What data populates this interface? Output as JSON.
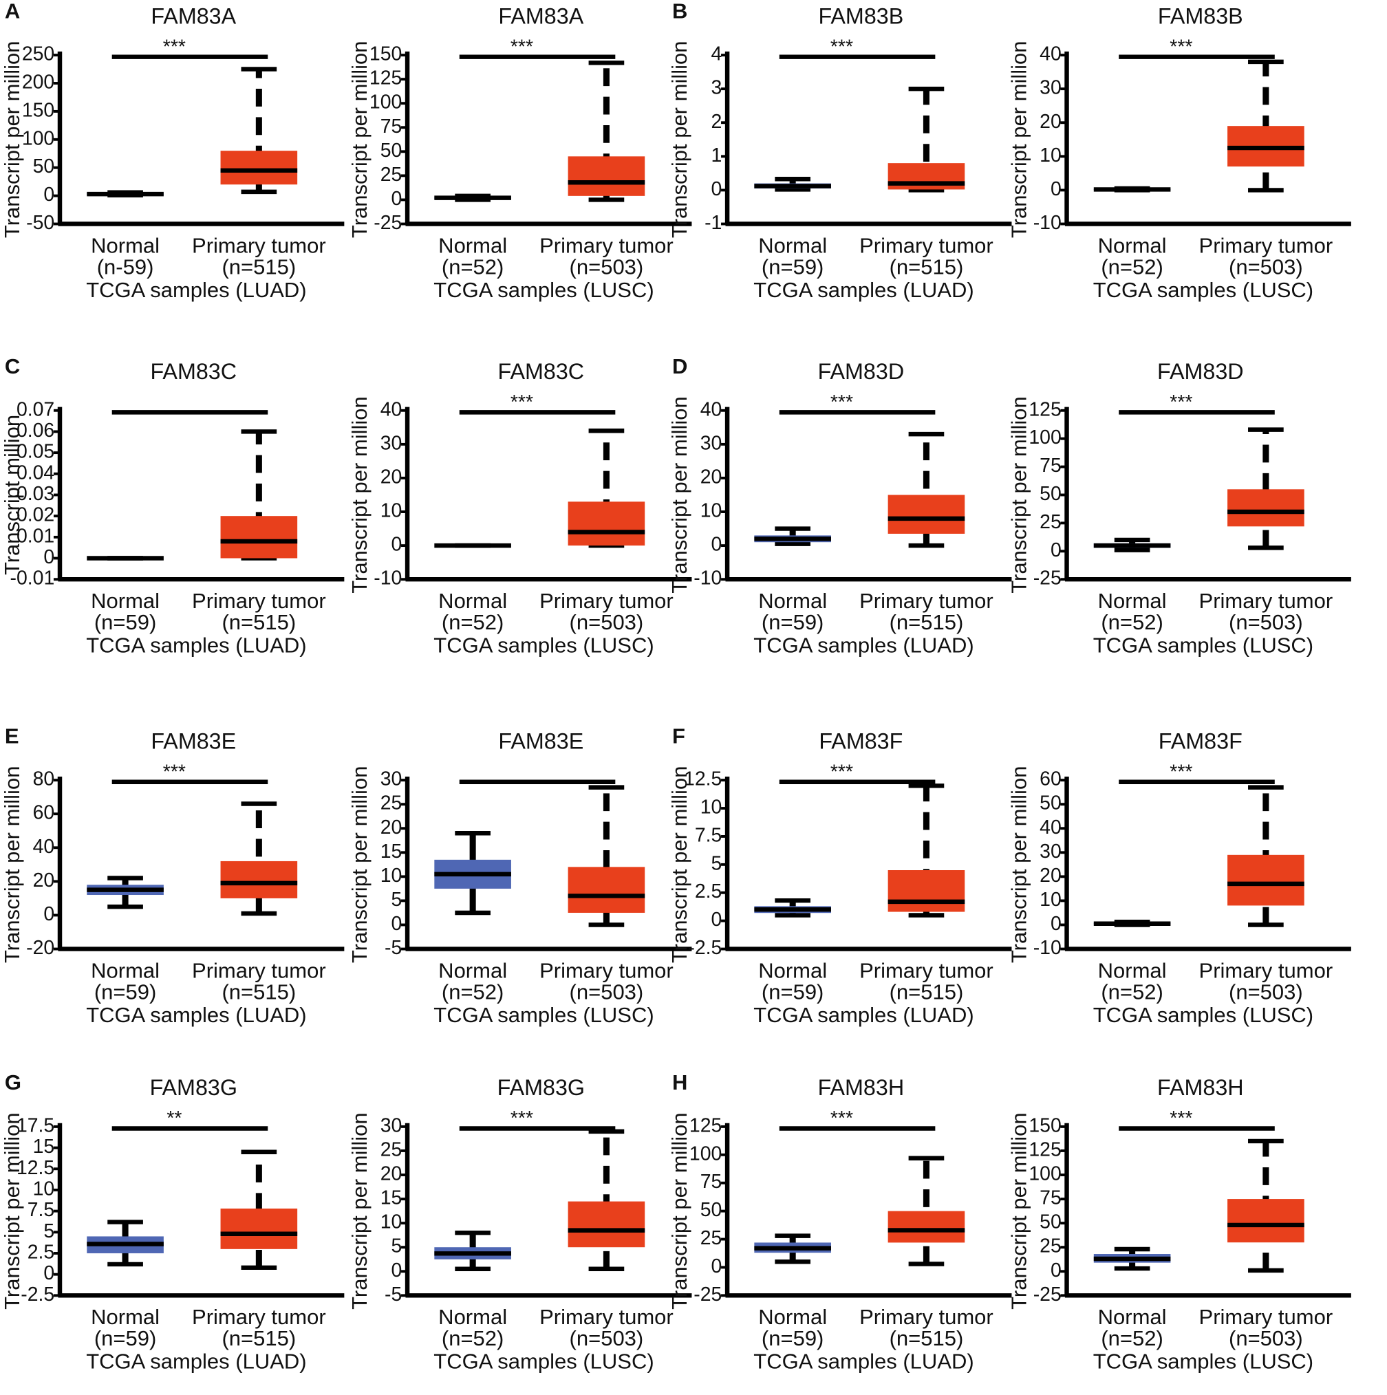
{
  "chart_data": [
    {
      "type": "box",
      "panel": "A",
      "title": "FAM83A",
      "ylabel": "Transcript per million",
      "xlabel": "TCGA samples (LUAD)",
      "categories": [
        "Normal",
        "Primary tumor"
      ],
      "n_labels": [
        "(n-59)",
        "(n=515)"
      ],
      "significance": "***",
      "ylim": [
        -50,
        250
      ],
      "yticks": [
        -50,
        0,
        50,
        100,
        150,
        200,
        250
      ],
      "boxes": [
        {
          "color": "#4f67b4",
          "whislo": 1,
          "q1": 2,
          "med": 3,
          "q3": 4,
          "whishi": 6
        },
        {
          "color": "#e8401c",
          "whislo": 7,
          "q1": 20,
          "med": 45,
          "q3": 80,
          "whishi": 225
        }
      ]
    },
    {
      "type": "box",
      "title": "FAM83A",
      "ylabel": "Transcript per million",
      "xlabel": "TCGA samples (LUSC)",
      "categories": [
        "Normal",
        "Primary tumor"
      ],
      "n_labels": [
        "(n=52)",
        "(n=503)"
      ],
      "significance": "***",
      "ylim": [
        -25,
        150
      ],
      "yticks": [
        -25,
        0,
        25,
        50,
        75,
        100,
        125,
        150
      ],
      "boxes": [
        {
          "color": "#4f67b4",
          "whislo": 0,
          "q1": 1,
          "med": 2,
          "q3": 3,
          "whishi": 4
        },
        {
          "color": "#e8401c",
          "whislo": 0,
          "q1": 4,
          "med": 18,
          "q3": 45,
          "whishi": 142
        }
      ]
    },
    {
      "type": "box",
      "panel": "B",
      "title": "FAM83B",
      "ylabel": "Transcript per million",
      "xlabel": "TCGA samples (LUAD)",
      "categories": [
        "Normal",
        "Primary tumor"
      ],
      "n_labels": [
        "(n=59)",
        "(n=515)"
      ],
      "significance": "***",
      "ylim": [
        -1,
        4
      ],
      "yticks": [
        -1,
        0,
        1,
        2,
        3,
        4
      ],
      "boxes": [
        {
          "color": "#4f67b4",
          "whislo": 0.02,
          "q1": 0.05,
          "med": 0.12,
          "q3": 0.2,
          "whishi": 0.33
        },
        {
          "color": "#e8401c",
          "whislo": 0,
          "q1": 0.02,
          "med": 0.2,
          "q3": 0.8,
          "whishi": 3
        }
      ]
    },
    {
      "type": "box",
      "title": "FAM83B",
      "ylabel": "Transcript per million",
      "xlabel": "TCGA samples (LUSC)",
      "categories": [
        "Normal",
        "Primary tumor"
      ],
      "n_labels": [
        "(n=52)",
        "(n=503)"
      ],
      "significance": "***",
      "ylim": [
        -10,
        40
      ],
      "yticks": [
        -10,
        0,
        10,
        20,
        30,
        40
      ],
      "boxes": [
        {
          "color": "#4f67b4",
          "whislo": 0,
          "q1": 0.1,
          "med": 0.2,
          "q3": 0.3,
          "whishi": 0.5
        },
        {
          "color": "#e8401c",
          "whislo": 0,
          "q1": 7,
          "med": 12.5,
          "q3": 19,
          "whishi": 38
        }
      ]
    },
    {
      "type": "box",
      "panel": "C",
      "title": "FAM83C",
      "ylabel": "Transcript million",
      "xlabel": "TCGA samples (LUAD)",
      "categories": [
        "Normal",
        "Primary tumor"
      ],
      "n_labels": [
        "(n=59)",
        "(n=515)"
      ],
      "ylim": [
        -0.01,
        0.07
      ],
      "yticks": [
        -0.01,
        0,
        0.01,
        0.02,
        0.03,
        0.04,
        0.05,
        0.06,
        0.07
      ],
      "boxes": [
        {
          "color": "#4f67b4",
          "whislo": 0,
          "q1": 0,
          "med": 0,
          "q3": 0,
          "whishi": 0
        },
        {
          "color": "#e8401c",
          "whislo": 0,
          "q1": 0,
          "med": 0.008,
          "q3": 0.02,
          "whishi": 0.06
        }
      ]
    },
    {
      "type": "box",
      "title": "FAM83C",
      "ylabel": "Transcript per million",
      "xlabel": "TCGA samples (LUSC)",
      "categories": [
        "Normal",
        "Primary tumor"
      ],
      "n_labels": [
        "(n=52)",
        "(n=503)"
      ],
      "significance": "***",
      "ylim": [
        -10,
        40
      ],
      "yticks": [
        -10,
        0,
        10,
        20,
        30,
        40
      ],
      "boxes": [
        {
          "color": "#4f67b4",
          "whislo": 0,
          "q1": 0,
          "med": 0,
          "q3": 0,
          "whishi": 0
        },
        {
          "color": "#e8401c",
          "whislo": 0,
          "q1": 0,
          "med": 4,
          "q3": 13,
          "whishi": 34
        }
      ]
    },
    {
      "type": "box",
      "panel": "D",
      "title": "FAM83D",
      "ylabel": "Transcript per million",
      "xlabel": "TCGA samples (LUAD)",
      "categories": [
        "Normal",
        "Primary tumor"
      ],
      "n_labels": [
        "(n=59)",
        "(n=515)"
      ],
      "significance": "***",
      "ylim": [
        -10,
        40
      ],
      "yticks": [
        -10,
        0,
        10,
        20,
        30,
        40
      ],
      "boxes": [
        {
          "color": "#4f67b4",
          "whislo": 0.5,
          "q1": 1,
          "med": 2,
          "q3": 3,
          "whishi": 5
        },
        {
          "color": "#e8401c",
          "whislo": 0,
          "q1": 3.5,
          "med": 8,
          "q3": 15,
          "whishi": 33
        }
      ]
    },
    {
      "type": "box",
      "title": "FAM83D",
      "ylabel": "Transcript per million",
      "xlabel": "TCGA samples (LUSC)",
      "categories": [
        "Normal",
        "Primary tumor"
      ],
      "n_labels": [
        "(n=52)",
        "(n=503)"
      ],
      "significance": "***",
      "ylim": [
        -25,
        125
      ],
      "yticks": [
        -25,
        0,
        25,
        50,
        75,
        100,
        125
      ],
      "boxes": [
        {
          "color": "#4f67b4",
          "whislo": 1,
          "q1": 3,
          "med": 5,
          "q3": 7,
          "whishi": 10
        },
        {
          "color": "#e8401c",
          "whislo": 3,
          "q1": 22,
          "med": 35,
          "q3": 55,
          "whishi": 108
        }
      ]
    },
    {
      "type": "box",
      "panel": "E",
      "title": "FAM83E",
      "ylabel": "Transcript per million",
      "xlabel": "TCGA samples (LUAD)",
      "categories": [
        "Normal",
        "Primary tumor"
      ],
      "n_labels": [
        "(n=59)",
        "(n=515)"
      ],
      "significance": "***",
      "ylim": [
        -20,
        80
      ],
      "yticks": [
        -20,
        0,
        20,
        40,
        60,
        80
      ],
      "boxes": [
        {
          "color": "#4f67b4",
          "whislo": 5,
          "q1": 12,
          "med": 15,
          "q3": 18,
          "whishi": 22
        },
        {
          "color": "#e8401c",
          "whislo": 1,
          "q1": 10,
          "med": 19,
          "q3": 32,
          "whishi": 66
        }
      ]
    },
    {
      "type": "box",
      "title": "FAM83E",
      "ylabel": "Transcript per million",
      "xlabel": "TCGA samples (LUSC)",
      "categories": [
        "Normal",
        "Primary tumor"
      ],
      "n_labels": [
        "(n=52)",
        "(n=503)"
      ],
      "ylim": [
        -5,
        30
      ],
      "yticks": [
        -5,
        0,
        5,
        10,
        15,
        20,
        25,
        30
      ],
      "boxes": [
        {
          "color": "#4f67b4",
          "whislo": 2.5,
          "q1": 7.5,
          "med": 10.5,
          "q3": 13.5,
          "whishi": 19
        },
        {
          "color": "#e8401c",
          "whislo": 0,
          "q1": 2.5,
          "med": 6,
          "q3": 12,
          "whishi": 28.5
        }
      ]
    },
    {
      "type": "box",
      "panel": "F",
      "title": "FAM83F",
      "ylabel": "Transcript per million",
      "xlabel": "TCGA samples (LUAD)",
      "categories": [
        "Normal",
        "Primary tumor"
      ],
      "n_labels": [
        "(n=59)",
        "(n=515)"
      ],
      "significance": "***",
      "ylim": [
        -2.5,
        12.5
      ],
      "yticks": [
        -2.5,
        0,
        2.5,
        5,
        7.5,
        10,
        12.5
      ],
      "boxes": [
        {
          "color": "#4f67b4",
          "whislo": 0.5,
          "q1": 0.7,
          "med": 1,
          "q3": 1.3,
          "whishi": 1.8
        },
        {
          "color": "#e8401c",
          "whislo": 0.5,
          "q1": 0.8,
          "med": 1.7,
          "q3": 4.5,
          "whishi": 12
        }
      ]
    },
    {
      "type": "box",
      "title": "FAM83F",
      "ylabel": "Transcript per million",
      "xlabel": "TCGA samples (LUSC)",
      "categories": [
        "Normal",
        "Primary tumor"
      ],
      "n_labels": [
        "(n=52)",
        "(n=503)"
      ],
      "significance": "***",
      "ylim": [
        -10,
        60
      ],
      "yticks": [
        -10,
        0,
        10,
        20,
        30,
        40,
        50,
        60
      ],
      "boxes": [
        {
          "color": "#4f67b4",
          "whislo": 0,
          "q1": 0.2,
          "med": 0.5,
          "q3": 0.8,
          "whishi": 1.2
        },
        {
          "color": "#e8401c",
          "whislo": 0,
          "q1": 8,
          "med": 17,
          "q3": 29,
          "whishi": 57
        }
      ]
    },
    {
      "type": "box",
      "panel": "G",
      "title": "FAM83G",
      "ylabel": "Transcript per million",
      "xlabel": "TCGA samples (LUAD)",
      "categories": [
        "Normal",
        "Primary tumor"
      ],
      "n_labels": [
        "(n=59)",
        "(n=515)"
      ],
      "significance": "**",
      "ylim": [
        -2.5,
        17.5
      ],
      "yticks": [
        -2.5,
        0,
        2.5,
        5,
        7.5,
        10,
        12.5,
        15,
        17.5
      ],
      "boxes": [
        {
          "color": "#4f67b4",
          "whislo": 1.2,
          "q1": 2.5,
          "med": 3.6,
          "q3": 4.5,
          "whishi": 6.2
        },
        {
          "color": "#e8401c",
          "whislo": 0.8,
          "q1": 3,
          "med": 4.8,
          "q3": 7.8,
          "whishi": 14.5
        }
      ]
    },
    {
      "type": "box",
      "title": "FAM83G",
      "ylabel": "Transcript per million",
      "xlabel": "TCGA samples (LUSC)",
      "categories": [
        "Normal",
        "Primary tumor"
      ],
      "n_labels": [
        "(n=52)",
        "(n=503)"
      ],
      "significance": "***",
      "ylim": [
        -5,
        30
      ],
      "yticks": [
        -5,
        0,
        5,
        10,
        15,
        20,
        25,
        30
      ],
      "boxes": [
        {
          "color": "#4f67b4",
          "whislo": 0.5,
          "q1": 2.5,
          "med": 3.7,
          "q3": 5,
          "whishi": 8
        },
        {
          "color": "#e8401c",
          "whislo": 0.5,
          "q1": 5,
          "med": 8.5,
          "q3": 14.5,
          "whishi": 29
        }
      ]
    },
    {
      "type": "box",
      "panel": "H",
      "title": "FAM83H",
      "ylabel": "Transcript per million",
      "xlabel": "TCGA samples (LUAD)",
      "categories": [
        "Normal",
        "Primary tumor"
      ],
      "n_labels": [
        "(n=59)",
        "(n=515)"
      ],
      "significance": "***",
      "ylim": [
        -25,
        125
      ],
      "yticks": [
        -25,
        0,
        25,
        50,
        75,
        100,
        125
      ],
      "boxes": [
        {
          "color": "#4f67b4",
          "whislo": 5,
          "q1": 13,
          "med": 17,
          "q3": 22,
          "whishi": 28
        },
        {
          "color": "#e8401c",
          "whislo": 3,
          "q1": 22,
          "med": 33,
          "q3": 50,
          "whishi": 97
        }
      ]
    },
    {
      "type": "box",
      "title": "FAM83H",
      "ylabel": "Transcript per million",
      "xlabel": "TCGA samples (LUSC)",
      "categories": [
        "Normal",
        "Primary tumor"
      ],
      "n_labels": [
        "(n=52)",
        "(n=503)"
      ],
      "significance": "***",
      "ylim": [
        -25,
        150
      ],
      "yticks": [
        -25,
        0,
        25,
        50,
        75,
        100,
        125,
        150
      ],
      "boxes": [
        {
          "color": "#4f67b4",
          "whislo": 3,
          "q1": 9,
          "med": 13,
          "q3": 18,
          "whishi": 23
        },
        {
          "color": "#e8401c",
          "whislo": 1,
          "q1": 30,
          "med": 48,
          "q3": 75,
          "whishi": 135
        }
      ]
    }
  ]
}
